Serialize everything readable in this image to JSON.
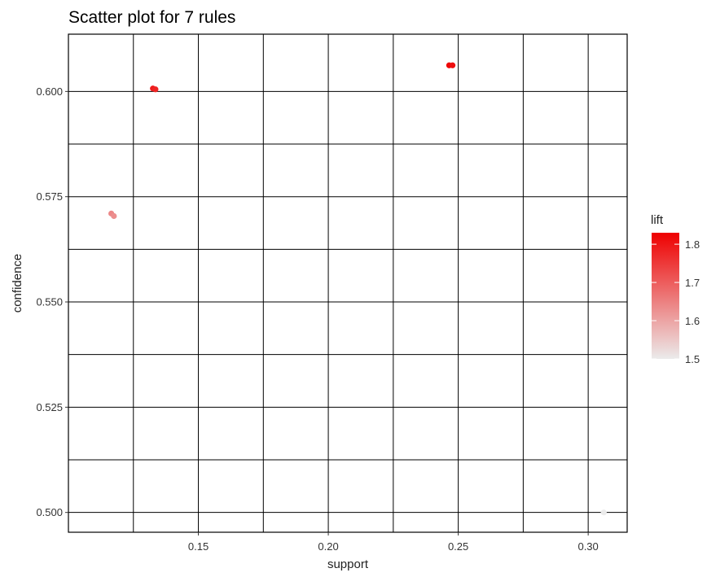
{
  "chart_data": {
    "type": "scatter",
    "title": "Scatter plot for 7 rules",
    "xlabel": "support",
    "ylabel": "confidence",
    "xlim": [
      0.1,
      0.315
    ],
    "ylim": [
      0.4953,
      0.6136
    ],
    "xticks": [
      {
        "value": 0.15,
        "label": "0.15"
      },
      {
        "value": 0.2,
        "label": "0.20"
      },
      {
        "value": 0.25,
        "label": "0.25"
      },
      {
        "value": 0.3,
        "label": "0.30"
      }
    ],
    "yticks": [
      {
        "value": 0.5,
        "label": "0.500"
      },
      {
        "value": 0.525,
        "label": "0.525"
      },
      {
        "value": 0.55,
        "label": "0.550"
      },
      {
        "value": 0.575,
        "label": "0.575"
      },
      {
        "value": 0.6,
        "label": "0.600"
      }
    ],
    "x_minor_breaks": [
      0.125,
      0.175,
      0.225,
      0.275
    ],
    "y_minor_breaks": [
      0.5125,
      0.5375,
      0.5625,
      0.5875
    ],
    "grid": true,
    "legend": {
      "title": "lift",
      "placement": "right",
      "range": [
        1.5,
        1.83
      ],
      "ticks": [
        {
          "value": 1.5,
          "label": "1.5"
        },
        {
          "value": 1.6,
          "label": "1.6"
        },
        {
          "value": 1.7,
          "label": "1.7"
        },
        {
          "value": 1.8,
          "label": "1.8"
        }
      ],
      "color_low": "#ebebeb",
      "color_high": "#ee0000"
    },
    "points": [
      {
        "support": 0.1165,
        "confidence": 0.571,
        "lift": 1.64
      },
      {
        "support": 0.1175,
        "confidence": 0.5704,
        "lift": 1.63
      },
      {
        "support": 0.1325,
        "confidence": 0.6007,
        "lift": 1.79
      },
      {
        "support": 0.1335,
        "confidence": 0.6005,
        "lift": 1.78
      },
      {
        "support": 0.2465,
        "confidence": 0.6062,
        "lift": 1.82
      },
      {
        "support": 0.2478,
        "confidence": 0.6062,
        "lift": 1.81
      },
      {
        "support": 0.306,
        "confidence": 0.5,
        "lift": 1.5
      }
    ]
  }
}
